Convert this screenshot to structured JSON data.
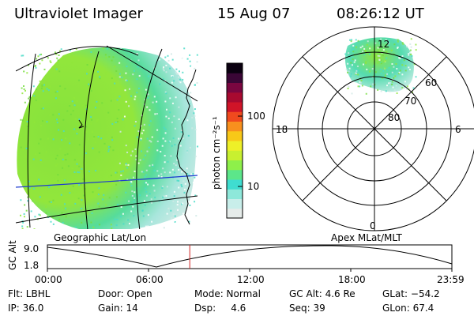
{
  "header": {
    "instrument": "Ultraviolet Imager",
    "date": "15 Aug 07",
    "time": "08:26:12 UT"
  },
  "geo_panel": {
    "label": "Geographic Lat/Lon"
  },
  "polar_panel": {
    "label": "Apex MLat/MLT",
    "mlt_labels": [
      "12",
      "18",
      "6",
      "0"
    ],
    "mlat_labels": [
      "60",
      "70",
      "80"
    ]
  },
  "colorbar": {
    "unit_label": "photon cm⁻²s⁻¹",
    "tick_labels": [
      "100",
      "10"
    ],
    "colors": [
      "#e6ecea",
      "#c8eeea",
      "#8ee8da",
      "#3fddd0",
      "#5ce68a",
      "#8ef04a",
      "#c8f030",
      "#eef028",
      "#f8c818",
      "#f8901e",
      "#f04a1e",
      "#d01428",
      "#a80a30",
      "#7a0640",
      "#3a0636",
      "#0a0010"
    ]
  },
  "altitude_plot": {
    "ylabel": "GC Alt",
    "yticks": [
      "9.0",
      "1.8"
    ],
    "xticks": [
      "00:00",
      "06:00",
      "12:00",
      "18:00",
      "23:59"
    ],
    "current_time_frac": 0.352,
    "line_color": "#000000",
    "marker_color": "#d02020"
  },
  "status": {
    "row1": {
      "filter": "Flt: LBHL",
      "door": "Door: Open",
      "mode": "Mode: Normal",
      "gc_alt": "GC Alt: 4.6 Re",
      "glat": "GLat: −54.2"
    },
    "row2": {
      "ip": "IP: 36.0",
      "gain": "Gain: 14",
      "dsp": "Dsp:     4.6",
      "seq": "Seq: 39",
      "glon": "GLon: 67.4"
    }
  },
  "palette": {
    "green": "#8fe63a",
    "green2": "#74dc3c",
    "cyan": "#49dcc8",
    "pale": "#cfe9e5",
    "blue_line": "#1e3ccf"
  }
}
